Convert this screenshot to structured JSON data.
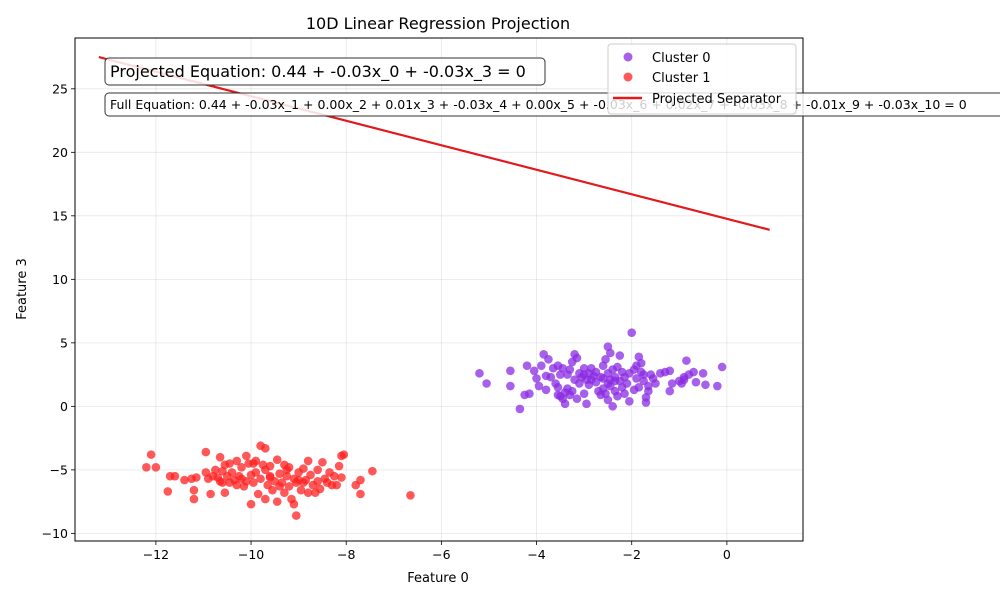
{
  "chart_data": {
    "type": "scatter",
    "title": "10D Linear Regression Projection",
    "xlabel": "Feature 0",
    "ylabel": "Feature 3",
    "xlim": [
      -13.7,
      1.6
    ],
    "ylim": [
      -10.6,
      29.0
    ],
    "xticks": [
      -12,
      -10,
      -8,
      -6,
      -4,
      -2,
      0
    ],
    "yticks": [
      -10,
      -5,
      0,
      5,
      10,
      15,
      20,
      25
    ],
    "grid": true,
    "legend_position": "top-right",
    "colors": {
      "cluster0": "#8a2be2",
      "cluster1": "#ff2020",
      "separator": "#e31a1c"
    },
    "annotations": {
      "projected_equation": "Projected Equation: 0.44 + -0.03x_0 + -0.03x_3 = 0",
      "full_equation": "Full Equation: 0.44 + -0.03x_1 + 0.00x_2 + 0.01x_3 + -0.03x_4 + 0.00x_5 + -0.03x_6 + 0.02x_7 + -0.03x_8 + -0.01x_9 + -0.03x_10 = 0"
    },
    "separator": {
      "name": "Projected Separator",
      "x": [
        -13.2,
        0.9
      ],
      "y": [
        27.5,
        13.9
      ]
    },
    "series": [
      {
        "name": "Cluster 0",
        "points": [
          [
            -5.2,
            2.6
          ],
          [
            -5.05,
            1.8
          ],
          [
            -4.55,
            2.8
          ],
          [
            -4.55,
            1.6
          ],
          [
            -4.35,
            -0.2
          ],
          [
            -4.25,
            0.9
          ],
          [
            -4.2,
            3.2
          ],
          [
            -4.15,
            1.0
          ],
          [
            -4.05,
            2.8
          ],
          [
            -4.0,
            2.2
          ],
          [
            -3.95,
            1.6
          ],
          [
            -3.9,
            3.2
          ],
          [
            -3.85,
            4.1
          ],
          [
            -3.8,
            1.3
          ],
          [
            -3.8,
            2.4
          ],
          [
            -3.75,
            3.7
          ],
          [
            -3.7,
            2.3
          ],
          [
            -3.65,
            3.0
          ],
          [
            -3.6,
            1.8
          ],
          [
            -3.55,
            3.2
          ],
          [
            -3.55,
            1.5
          ],
          [
            -3.5,
            0.8
          ],
          [
            -3.5,
            2.5
          ],
          [
            -3.45,
            0.6
          ],
          [
            -3.45,
            3.0
          ],
          [
            -3.4,
            1.1
          ],
          [
            -3.4,
            0.2
          ],
          [
            -3.35,
            1.4
          ],
          [
            -3.35,
            2.5
          ],
          [
            -3.3,
            0.9
          ],
          [
            -3.3,
            2.9
          ],
          [
            -3.25,
            1.2
          ],
          [
            -3.25,
            3.5
          ],
          [
            -3.2,
            2.1
          ],
          [
            -3.2,
            4.1
          ],
          [
            -3.15,
            0.6
          ],
          [
            -3.15,
            3.8
          ],
          [
            -3.1,
            2.6
          ],
          [
            -3.1,
            1.8
          ],
          [
            -3.05,
            2.3
          ],
          [
            -3.0,
            3.0
          ],
          [
            -3.0,
            1.0
          ],
          [
            -2.95,
            2.1
          ],
          [
            -2.95,
            0.2
          ],
          [
            -2.9,
            1.7
          ],
          [
            -2.9,
            2.6
          ],
          [
            -2.85,
            3.0
          ],
          [
            -2.8,
            2.4
          ],
          [
            -2.75,
            1.9
          ],
          [
            -2.75,
            2.7
          ],
          [
            -2.7,
            1.2
          ],
          [
            -2.65,
            0.9
          ],
          [
            -2.65,
            2.3
          ],
          [
            -2.6,
            3.2
          ],
          [
            -2.6,
            1.4
          ],
          [
            -2.55,
            1.0
          ],
          [
            -2.55,
            3.7
          ],
          [
            -2.5,
            2.6
          ],
          [
            -2.5,
            1.8
          ],
          [
            -2.5,
            0.5
          ],
          [
            -2.5,
            4.7
          ],
          [
            -2.45,
            2.1
          ],
          [
            -2.45,
            4.2
          ],
          [
            -2.45,
            1.6
          ],
          [
            -2.4,
            0.0
          ],
          [
            -2.4,
            2.9
          ],
          [
            -2.35,
            2.3
          ],
          [
            -2.35,
            1.2
          ],
          [
            -2.3,
            0.8
          ],
          [
            -2.3,
            3.1
          ],
          [
            -2.25,
            2.0
          ],
          [
            -2.25,
            4.0
          ],
          [
            -2.2,
            1.5
          ],
          [
            -2.2,
            2.7
          ],
          [
            -2.15,
            1.0
          ],
          [
            -2.15,
            2.3
          ],
          [
            -2.1,
            1.8
          ],
          [
            -2.05,
            2.6
          ],
          [
            -2.05,
            0.4
          ],
          [
            -2.0,
            5.8
          ],
          [
            -1.95,
            2.9
          ],
          [
            -1.95,
            1.3
          ],
          [
            -1.9,
            3.2
          ],
          [
            -1.9,
            2.2
          ],
          [
            -1.85,
            1.5
          ],
          [
            -1.85,
            3.9
          ],
          [
            -1.8,
            3.4
          ],
          [
            -1.8,
            2.7
          ],
          [
            -1.75,
            2.0
          ],
          [
            -1.75,
            2.5
          ],
          [
            -1.7,
            0.7
          ],
          [
            -1.7,
            0.3
          ],
          [
            -1.65,
            1.2
          ],
          [
            -1.65,
            1.6
          ],
          [
            -1.6,
            2.5
          ],
          [
            -1.55,
            2.2
          ],
          [
            -1.5,
            1.8
          ],
          [
            -1.4,
            2.6
          ],
          [
            -1.3,
            2.7
          ],
          [
            -1.2,
            1.2
          ],
          [
            -1.2,
            2.8
          ],
          [
            -1.15,
            1.8
          ],
          [
            -1.0,
            2.0
          ],
          [
            -0.95,
            1.8
          ],
          [
            -0.9,
            2.1
          ],
          [
            -0.9,
            2.3
          ],
          [
            -0.85,
            3.6
          ],
          [
            -0.8,
            2.5
          ],
          [
            -0.7,
            2.7
          ],
          [
            -0.65,
            1.9
          ],
          [
            -0.5,
            2.6
          ],
          [
            -0.45,
            1.7
          ],
          [
            -0.2,
            1.6
          ],
          [
            -0.1,
            3.1
          ],
          [
            -3.55,
            0.9
          ],
          [
            -2.85,
            2.1
          ],
          [
            -2.35,
            2.0
          ],
          [
            -2.6,
            2.2
          ],
          [
            -3.0,
            2.5
          ]
        ]
      },
      {
        "name": "Cluster 1",
        "points": [
          [
            -12.2,
            -4.8
          ],
          [
            -12.1,
            -3.8
          ],
          [
            -12.0,
            -4.8
          ],
          [
            -11.75,
            -6.7
          ],
          [
            -11.7,
            -5.5
          ],
          [
            -11.6,
            -5.5
          ],
          [
            -11.4,
            -5.8
          ],
          [
            -11.25,
            -5.7
          ],
          [
            -11.2,
            -7.3
          ],
          [
            -11.2,
            -6.6
          ],
          [
            -11.15,
            -5.6
          ],
          [
            -10.95,
            -5.2
          ],
          [
            -10.95,
            -3.6
          ],
          [
            -10.9,
            -5.7
          ],
          [
            -10.85,
            -6.9
          ],
          [
            -10.75,
            -5.0
          ],
          [
            -10.7,
            -5.6
          ],
          [
            -10.65,
            -4.0
          ],
          [
            -10.65,
            -5.9
          ],
          [
            -10.6,
            -5.1
          ],
          [
            -10.55,
            -4.6
          ],
          [
            -10.55,
            -6.8
          ],
          [
            -10.5,
            -5.5
          ],
          [
            -10.45,
            -4.5
          ],
          [
            -10.45,
            -6.0
          ],
          [
            -10.4,
            -5.2
          ],
          [
            -10.35,
            -5.8
          ],
          [
            -10.3,
            -4.3
          ],
          [
            -10.3,
            -6.2
          ],
          [
            -10.25,
            -5.5
          ],
          [
            -10.2,
            -4.8
          ],
          [
            -10.15,
            -6.3
          ],
          [
            -10.1,
            -3.9
          ],
          [
            -10.1,
            -5.9
          ],
          [
            -10.05,
            -4.5
          ],
          [
            -10.0,
            -5.4
          ],
          [
            -10.0,
            -7.7
          ],
          [
            -9.95,
            -6.0
          ],
          [
            -9.9,
            -4.3
          ],
          [
            -9.9,
            -5.2
          ],
          [
            -9.85,
            -6.9
          ],
          [
            -9.8,
            -5.7
          ],
          [
            -9.8,
            -3.1
          ],
          [
            -9.75,
            -4.6
          ],
          [
            -9.7,
            -3.3
          ],
          [
            -9.7,
            -5.0
          ],
          [
            -9.7,
            -7.3
          ],
          [
            -9.65,
            -6.2
          ],
          [
            -9.6,
            -5.5
          ],
          [
            -9.6,
            -4.7
          ],
          [
            -9.55,
            -6.6
          ],
          [
            -9.5,
            -5.9
          ],
          [
            -9.45,
            -4.2
          ],
          [
            -9.45,
            -7.5
          ],
          [
            -9.4,
            -5.3
          ],
          [
            -9.35,
            -6.0
          ],
          [
            -9.3,
            -4.6
          ],
          [
            -9.3,
            -6.8
          ],
          [
            -9.25,
            -5.5
          ],
          [
            -9.2,
            -4.8
          ],
          [
            -9.2,
            -6.3
          ],
          [
            -9.15,
            -7.3
          ],
          [
            -9.1,
            -5.7
          ],
          [
            -9.1,
            -7.7
          ],
          [
            -9.05,
            -8.6
          ],
          [
            -9.05,
            -6.0
          ],
          [
            -9.0,
            -5.2
          ],
          [
            -8.95,
            -6.6
          ],
          [
            -8.9,
            -4.9
          ],
          [
            -8.85,
            -5.8
          ],
          [
            -8.8,
            -4.3
          ],
          [
            -8.8,
            -6.8
          ],
          [
            -8.75,
            -5.4
          ],
          [
            -8.7,
            -6.2
          ],
          [
            -8.65,
            -6.8
          ],
          [
            -8.6,
            -5.0
          ],
          [
            -8.55,
            -6.5
          ],
          [
            -8.5,
            -4.4
          ],
          [
            -8.45,
            -5.7
          ],
          [
            -8.4,
            -6.0
          ],
          [
            -8.35,
            -5.2
          ],
          [
            -8.3,
            -6.2
          ],
          [
            -8.25,
            -5.5
          ],
          [
            -8.2,
            -6.2
          ],
          [
            -8.15,
            -4.7
          ],
          [
            -8.1,
            -5.6
          ],
          [
            -8.1,
            -3.9
          ],
          [
            -8.05,
            -3.8
          ],
          [
            -7.8,
            -6.2
          ],
          [
            -7.7,
            -5.8
          ],
          [
            -7.7,
            -6.9
          ],
          [
            -7.45,
            -5.1
          ],
          [
            -6.65,
            -7.0
          ],
          [
            -10.8,
            -5.5
          ],
          [
            -10.2,
            -5.7
          ],
          [
            -9.6,
            -5.6
          ],
          [
            -9.0,
            -5.8
          ],
          [
            -8.6,
            -5.9
          ],
          [
            -9.4,
            -6.3
          ],
          [
            -10.6,
            -6.0
          ],
          [
            -9.95,
            -4.5
          ],
          [
            -9.25,
            -5.0
          ],
          [
            -8.9,
            -6.0
          ]
        ]
      }
    ]
  }
}
